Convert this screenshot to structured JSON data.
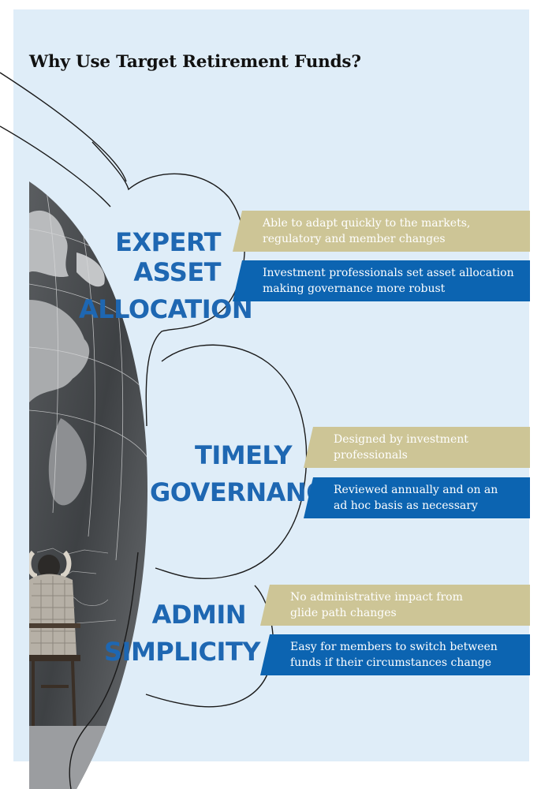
{
  "title": "Why Use Target Retirement Funds?",
  "colors": {
    "panel_background": "#dfedf8",
    "heading_blue": "#1e67b2",
    "band_tan": "#cdc596",
    "band_blue": "#0c64b1"
  },
  "sections": [
    {
      "heading_lines": [
        "EXPERT ASSET",
        "ALLOCATION"
      ],
      "points": [
        {
          "style": "tan",
          "lines": [
            "Able to adapt quickly to the markets,",
            "regulatory and member changes"
          ]
        },
        {
          "style": "blue",
          "lines": [
            "Investment professionals set asset allocation",
            "making governance more robust"
          ]
        }
      ]
    },
    {
      "heading_lines": [
        "TIMELY",
        "GOVERNANCE"
      ],
      "points": [
        {
          "style": "tan",
          "lines": [
            "Designed by investment",
            "professionals"
          ]
        },
        {
          "style": "blue",
          "lines": [
            "Reviewed annually and on an",
            "ad hoc basis as necessary"
          ]
        }
      ]
    },
    {
      "heading_lines": [
        "ADMIN",
        "SIMPLICITY"
      ],
      "points": [
        {
          "style": "tan",
          "lines": [
            "No administrative impact from",
            "glide path changes"
          ]
        },
        {
          "style": "blue",
          "lines": [
            "Easy for members to switch between",
            "funds if their circumstances change"
          ]
        }
      ]
    }
  ],
  "image": {
    "description_icon": "globe-chalkboard-photo"
  }
}
